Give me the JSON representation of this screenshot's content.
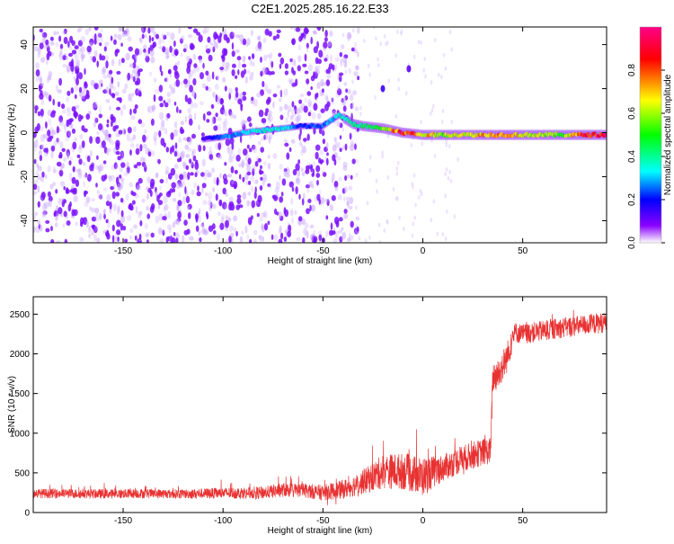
{
  "title": "C2E1.2025.285.16.22.E33",
  "chart_data": [
    {
      "type": "heatmap",
      "xlabel": "Height of straight line (km)",
      "ylabel": "Frequency (Hz)",
      "xlim": [
        -195,
        92
      ],
      "ylim": [
        -50,
        48
      ],
      "x_ticks": [
        -150,
        -100,
        -50,
        0,
        50
      ],
      "y_ticks": [
        -40,
        -20,
        0,
        20,
        40
      ],
      "colorbar": {
        "label": "Normalized spectral amplitude",
        "range": [
          0,
          1
        ],
        "ticks": [
          0.0,
          0.2,
          0.4,
          0.6,
          0.8
        ],
        "colors": [
          "#ffffff",
          "#7a00ff",
          "#0000ff",
          "#00ffff",
          "#00ff00",
          "#ffff00",
          "#ff0000",
          "#ff0088"
        ]
      },
      "ridge": {
        "x": [
          -110,
          -100,
          -90,
          -80,
          -70,
          -60,
          -50,
          -42,
          -35,
          -30,
          -20,
          -10,
          0,
          10,
          20,
          30,
          40,
          50,
          60,
          70,
          80,
          92
        ],
        "y": [
          -3,
          -2,
          0,
          1,
          2,
          3,
          3,
          8,
          4,
          3,
          2,
          0,
          -1,
          -1,
          -1,
          -1,
          -1,
          -1,
          -1,
          -1,
          -1,
          -1
        ],
        "amplitude": [
          0.15,
          0.25,
          0.3,
          0.35,
          0.35,
          0.2,
          0.25,
          0.35,
          0.4,
          0.45,
          0.55,
          0.85,
          0.7,
          0.6,
          0.65,
          0.7,
          0.7,
          0.65,
          0.6,
          0.55,
          0.8,
          0.95
        ]
      },
      "features": [
        {
          "x": -20,
          "y": 20,
          "amplitude": 0.15
        },
        {
          "x": -7,
          "y": 29,
          "amplitude": 0.12
        }
      ],
      "noise_region": {
        "x_range": [
          -195,
          -40
        ],
        "amplitude": 0.15
      }
    },
    {
      "type": "line",
      "xlabel": "Height of straight line (km)",
      "ylabel": "SNR (10 * v/v)",
      "xlim": [
        -195,
        92
      ],
      "ylim": [
        0,
        2720
      ],
      "x_ticks": [
        -150,
        -100,
        -50,
        0,
        50
      ],
      "y_ticks": [
        0,
        500,
        1000,
        1500,
        2000,
        2500
      ],
      "color": "#e83232",
      "series": [
        {
          "name": "SNR",
          "x": [
            -195,
            -180,
            -160,
            -140,
            -120,
            -100,
            -80,
            -70,
            -60,
            -50,
            -40,
            -30,
            -20,
            -10,
            0,
            10,
            20,
            30,
            34,
            35,
            38,
            42,
            46,
            50,
            60,
            70,
            80,
            92
          ],
          "y": [
            240,
            240,
            235,
            240,
            235,
            245,
            250,
            285,
            280,
            250,
            290,
            380,
            520,
            520,
            450,
            560,
            680,
            760,
            780,
            1700,
            1750,
            1950,
            2270,
            2250,
            2290,
            2330,
            2360,
            2400
          ],
          "spread": [
            60,
            60,
            60,
            60,
            60,
            70,
            80,
            90,
            90,
            100,
            120,
            150,
            220,
            230,
            250,
            170,
            170,
            170,
            170,
            200,
            200,
            200,
            130,
            130,
            130,
            130,
            130,
            130
          ]
        }
      ]
    }
  ]
}
